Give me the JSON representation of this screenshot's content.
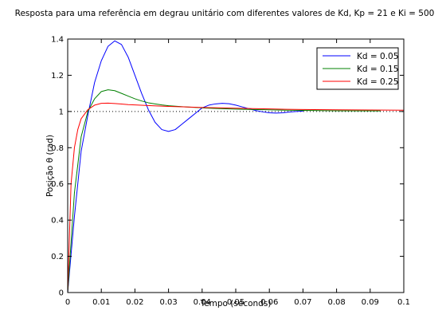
{
  "chart_data": {
    "type": "line",
    "title": "Resposta para uma referência em degrau unitário com diferentes valores de Kd, Kp = 21 e Ki = 500",
    "xlabel": "Tempo (seconds)",
    "ylabel": "Posição θ (rad)",
    "xlim": [
      0,
      0.1
    ],
    "ylim": [
      0,
      1.4
    ],
    "xticks": [
      0,
      0.01,
      0.02,
      0.03,
      0.04,
      0.05,
      0.06,
      0.07,
      0.08,
      0.09,
      0.1
    ],
    "xtick_labels": [
      "0",
      "0.01",
      "0.02",
      "0.03",
      "0.04",
      "0.05",
      "0.06",
      "0.07",
      "0.08",
      "0.09",
      "0.1"
    ],
    "yticks": [
      0,
      0.2,
      0.4,
      0.6,
      0.8,
      1,
      1.2,
      1.4
    ],
    "ytick_labels": [
      "0",
      "0.2",
      "0.4",
      "0.6",
      "0.8",
      "1",
      "1.2",
      "1.4"
    ],
    "grid": false,
    "legend_position": "top-right",
    "reference_line": {
      "y": 1,
      "style": "dotted",
      "color": "#000000"
    },
    "series": [
      {
        "name": "Kd = 0.05",
        "color": "#0000ff",
        "x": [
          0,
          0.002,
          0.004,
          0.006,
          0.008,
          0.01,
          0.012,
          0.014,
          0.016,
          0.018,
          0.02,
          0.022,
          0.024,
          0.026,
          0.028,
          0.03,
          0.032,
          0.034,
          0.036,
          0.038,
          0.04,
          0.042,
          0.044,
          0.046,
          0.048,
          0.05,
          0.052,
          0.054,
          0.056,
          0.058,
          0.06,
          0.062,
          0.064,
          0.066,
          0.068,
          0.07
        ],
        "y": [
          0,
          0.42,
          0.78,
          0.98,
          1.16,
          1.28,
          1.36,
          1.39,
          1.37,
          1.3,
          1.2,
          1.1,
          1.01,
          0.94,
          0.9,
          0.89,
          0.9,
          0.93,
          0.96,
          0.99,
          1.02,
          1.035,
          1.042,
          1.045,
          1.043,
          1.035,
          1.025,
          1.015,
          1.005,
          0.998,
          0.993,
          0.991,
          0.993,
          0.997,
          1.0,
          1.002
        ]
      },
      {
        "name": "Kd = 0.15",
        "color": "#008000",
        "x": [
          0,
          0.002,
          0.004,
          0.006,
          0.008,
          0.01,
          0.012,
          0.014,
          0.016,
          0.018,
          0.02,
          0.022,
          0.024,
          0.026,
          0.028,
          0.03,
          0.035,
          0.04,
          0.045,
          0.05,
          0.055,
          0.06,
          0.065,
          0.07,
          0.08,
          0.09,
          0.093
        ],
        "y": [
          0,
          0.55,
          0.86,
          1.0,
          1.07,
          1.11,
          1.12,
          1.115,
          1.1,
          1.085,
          1.07,
          1.058,
          1.048,
          1.042,
          1.036,
          1.032,
          1.025,
          1.02,
          1.016,
          1.013,
          1.011,
          1.009,
          1.007,
          1.006,
          1.004,
          1.003,
          1.003
        ]
      },
      {
        "name": "Kd = 0.25",
        "color": "#ff0000",
        "x": [
          0,
          0.001,
          0.002,
          0.003,
          0.004,
          0.006,
          0.008,
          0.01,
          0.012,
          0.014,
          0.016,
          0.018,
          0.02,
          0.025,
          0.03,
          0.035,
          0.04,
          0.045,
          0.05,
          0.055,
          0.06,
          0.065,
          0.07,
          0.08,
          0.09,
          0.1
        ],
        "y": [
          0,
          0.6,
          0.8,
          0.9,
          0.96,
          1.01,
          1.035,
          1.045,
          1.046,
          1.044,
          1.041,
          1.038,
          1.036,
          1.032,
          1.028,
          1.025,
          1.022,
          1.02,
          1.018,
          1.016,
          1.014,
          1.012,
          1.011,
          1.009,
          1.008,
          1.007
        ]
      }
    ]
  }
}
